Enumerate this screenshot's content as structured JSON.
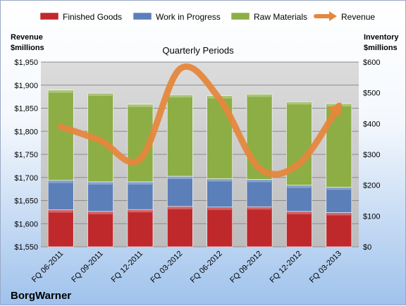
{
  "chart_data": {
    "type": "bar",
    "title": "Quarterly Periods",
    "brand": "BorgWarner",
    "left_axis_title": [
      "Revenue",
      "$millions"
    ],
    "right_axis_title": [
      "Inventory",
      "$millions"
    ],
    "categories": [
      "FQ 06-2011",
      "FQ 09-2011",
      "FQ 12-2011",
      "FQ 03-2012",
      "FQ 06-2012",
      "FQ 09-2012",
      "FQ 12-2012",
      "FQ 03-2013"
    ],
    "stacked": true,
    "series": [
      {
        "name": "Finished Goods",
        "axis": "right",
        "color": "#c0292c",
        "values": [
          120,
          115,
          121,
          131,
          129,
          130,
          115,
          111
        ]
      },
      {
        "name": "Work in Progress",
        "axis": "right",
        "color": "#5b7fb8",
        "values": [
          96,
          96,
          90,
          98,
          92,
          89,
          85,
          83
        ]
      },
      {
        "name": "Raw Materials",
        "axis": "right",
        "color": "#8cae45",
        "values": [
          293,
          288,
          252,
          265,
          270,
          277,
          271,
          271
        ]
      }
    ],
    "line": {
      "name": "Revenue",
      "axis": "left",
      "color": "#e5873d",
      "values": [
        1810,
        1780,
        1740,
        1935,
        1870,
        1720,
        1730,
        1855
      ]
    },
    "left_axis": {
      "min": 1550,
      "max": 1950,
      "step": 50,
      "prefix": "$"
    },
    "right_axis": {
      "min": 0,
      "max": 600,
      "step": 100,
      "prefix": "$"
    },
    "legend_position": "top",
    "grid": true
  }
}
